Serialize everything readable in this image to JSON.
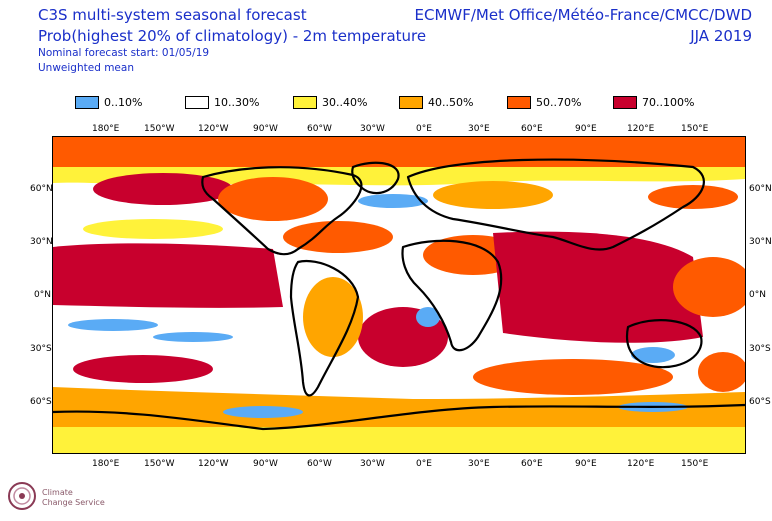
{
  "header": {
    "title_line1": "C3S multi-system seasonal forecast",
    "title_line2": "Prob(highest 20% of climatology) - 2m temperature",
    "line3": "Nominal forecast start: 01/05/19",
    "line4": "Unweighted mean",
    "centres": "ECMWF/Met Office/Météo-France/CMCC/DWD",
    "season": "JJA 2019"
  },
  "legend": [
    {
      "label": "0..10%",
      "color": "#5aabf5"
    },
    {
      "label": "10..30%",
      "color": "#ffffff"
    },
    {
      "label": "30..40%",
      "color": "#fff23a"
    },
    {
      "label": "40..50%",
      "color": "#ffa500"
    },
    {
      "label": "50..70%",
      "color": "#ff5a00"
    },
    {
      "label": "70..100%",
      "color": "#c8002d"
    }
  ],
  "axes": {
    "lon_labels": [
      "180°E",
      "150°W",
      "120°W",
      "90°W",
      "60°W",
      "30°W",
      "0°E",
      "30°E",
      "60°E",
      "90°E",
      "120°E",
      "150°E"
    ],
    "lat_labels": [
      "60°N",
      "30°N",
      "0°N",
      "30°S",
      "60°S"
    ]
  },
  "logo": {
    "line1": "Climate",
    "line2": "Change Service"
  }
}
